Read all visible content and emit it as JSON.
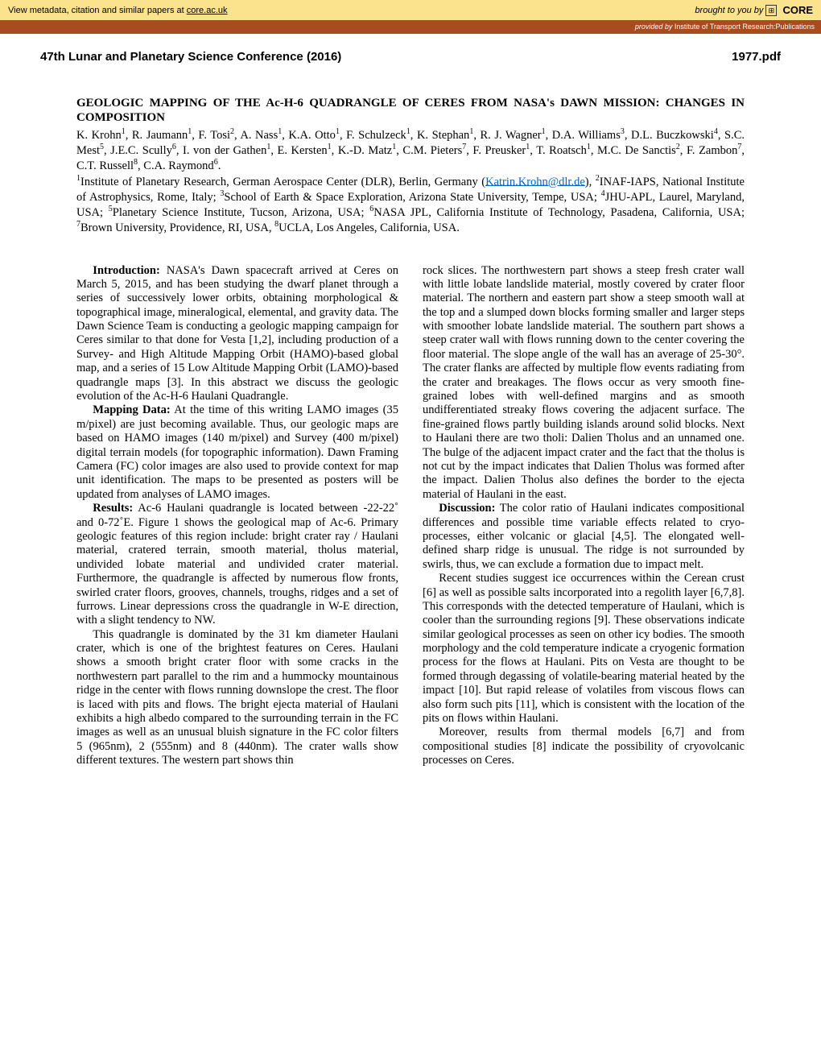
{
  "banner": {
    "left_text": "View metadata, citation and similar papers at ",
    "left_link": "core.ac.uk",
    "right_prefix": "brought to you by ",
    "right_brand": "CORE"
  },
  "sub_banner": {
    "prefix": "provided by ",
    "provider": "Institute of Transport Research:Publications"
  },
  "header": {
    "conference": "47th Lunar and Planetary Science Conference (2016)",
    "pdf": "1977.pdf"
  },
  "paper": {
    "title": "GEOLOGIC MAPPING OF THE Ac-H-6 QUADRANGLE OF CERES FROM NASA's DAWN MISSION: CHANGES IN COMPOSITION",
    "email": "Katrin.Krohn@dlr.de"
  },
  "body": {
    "intro_head": "Introduction:",
    "intro_text": "  NASA's Dawn spacecraft arrived at Ceres on March 5, 2015, and has been studying the dwarf planet through a series of successively lower orbits, obtaining morphological & topographical image, mineralogical, elemental, and gravity data. The Dawn Science Team is conducting a geologic mapping campaign for Ceres similar to that done for Vesta [1,2], including production of a Survey- and High Altitude Mapping Orbit (HAMO)-based global map, and a series of 15 Low Altitude Mapping Orbit (LAMO)-based quadrangle maps [3]. In this abstract we discuss the geologic evolution of the Ac-H-6 Haulani Quadrangle.",
    "mapping_head": "Mapping Data:",
    "mapping_text": "  At the time of this writing LAMO images (35 m/pixel) are just becoming available. Thus, our geologic maps are based on HAMO images (140 m/pixel) and Survey (400 m/pixel) digital terrain models (for topographic information). Dawn Framing Camera (FC) color images are also used to provide context for map unit identification. The maps to be presented as posters will be updated from analyses of LAMO images.",
    "results_head": "Results:",
    "results_text1": " Ac-6 Haulani quadrangle is located between -22-22˚ and 0-72˚E. Figure 1 shows the geological map of Ac-6. Primary geologic features of this region include: bright crater ray / Haulani material, cratered terrain, smooth material, tholus material, undivided lobate material and undivided crater material. Furthermore, the quadrangle is affected by numerous flow fronts, swirled crater floors, grooves, channels, troughs, ridges and a set of furrows. Linear depressions cross the quadrangle in W-E direction, with a slight tendency to NW.",
    "results_text2": "This quadrangle is dominated by the 31 km diameter Haulani crater, which is one of the brightest features on Ceres. Haulani shows a smooth bright crater floor with some cracks in the northwestern part parallel to the rim and a hummocky mountainous ridge in the center with flows running downslope the crest. The floor is laced with pits and flows. The bright ejecta material of Haulani exhibits a high albedo compared to the surrounding terrain in the FC images as well as an unusual bluish signature in the FC color filters 5 (965nm), 2 (555nm) and 8 (440nm). The crater walls show different textures. The western part shows thin",
    "col2_p1": "rock slices. The northwestern part shows a steep fresh crater wall with little lobate landslide material, mostly covered by crater floor material. The northern and eastern part show a steep smooth wall at the top and a slumped down blocks forming smaller and larger steps with smoother lobate landslide material. The southern part shows a steep crater wall with flows running down to the center covering the floor material. The slope angle of the wall has an average of 25-30°. The crater flanks are affected by multiple flow events radiating from the crater and breakages. The flows occur as very smooth fine-grained lobes with well-defined margins and as smooth undifferentiated streaky flows covering the adjacent surface. The fine-grained flows partly building islands around solid blocks. Next to Haulani there are two tholi: Dalien Tholus and an unnamed one. The bulge of the adjacent impact crater and the fact that the tholus is not cut by the impact indicates that Dalien Tholus was formed after the impact. Dalien Tholus also defines the border to the ejecta material of Haulani in the east.",
    "disc_head": "Discussion:",
    "disc_text1": " The color ratio of Haulani indicates compositional differences and possible time variable effects related to cryo-processes, either volcanic or glacial [4,5]. The elongated well-defined sharp ridge is unusual. The ridge is not surrounded by swirls, thus, we can exclude a formation due to impact melt.",
    "disc_text2": "Recent studies suggest ice occurrences within the Cerean crust [6] as well as possible salts incorporated into a regolith layer [6,7,8]. This corresponds with the detected temperature of Haulani, which is cooler than the surrounding regions [9]. These observations indicate similar geological processes as seen on other icy bodies. The smooth morphology and the cold temperature indicate a cryogenic formation process for the flows at Haulani. Pits on Vesta are thought to be formed through degassing of volatile-bearing material heated by the impact [10]. But rapid release of volatiles from viscous flows can also form such pits [11], which is consistent with the location of the pits on flows within Haulani.",
    "disc_text3": "Moreover, results from thermal models [6,7] and from compositional studies [8] indicate the possibility of  cryovolcanic processes on Ceres."
  },
  "colors": {
    "banner_bg": "#fbe38e",
    "sub_banner_bg": "#a84b1f",
    "link_color": "#0066cc"
  }
}
